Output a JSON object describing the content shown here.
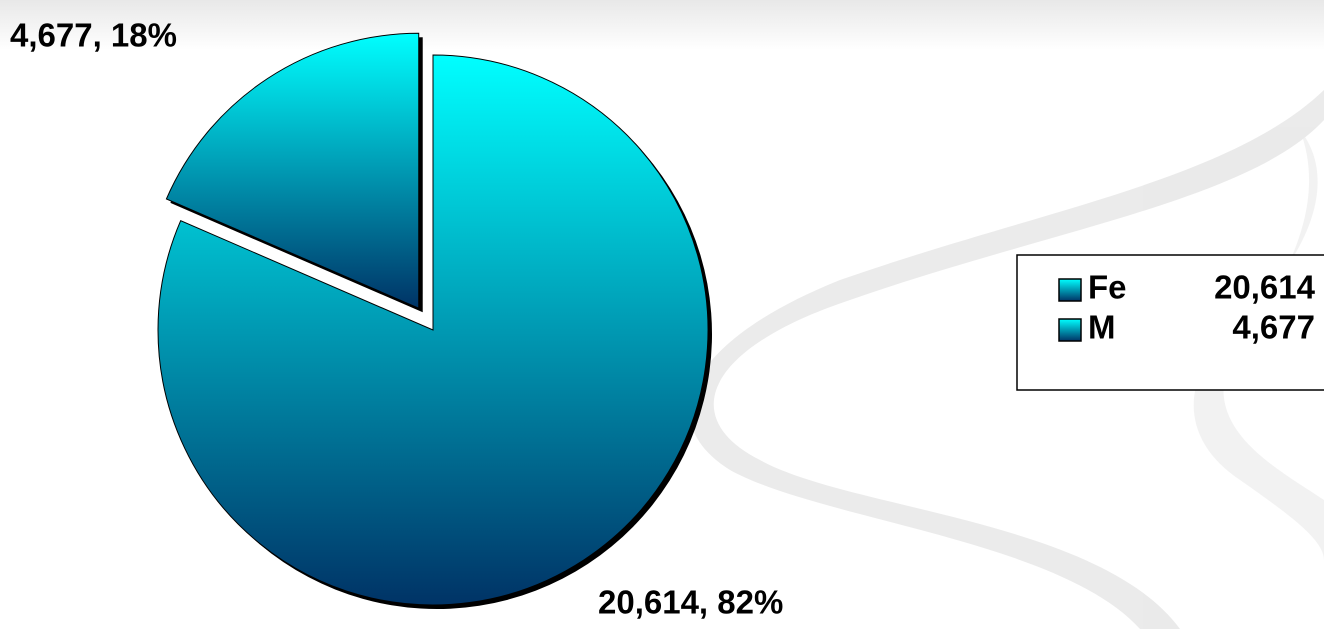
{
  "chart_data": {
    "type": "pie",
    "categories": [
      "Fe",
      "M"
    ],
    "values": [
      20614,
      4677
    ],
    "value_labels": [
      "20,614, 82%",
      "4,677, 18%"
    ],
    "legend_values": [
      "20,614",
      "4,677"
    ],
    "gradient": [
      "#00ffff",
      "#003366"
    ],
    "exploded": [
      false,
      true
    ],
    "legend": "right"
  }
}
